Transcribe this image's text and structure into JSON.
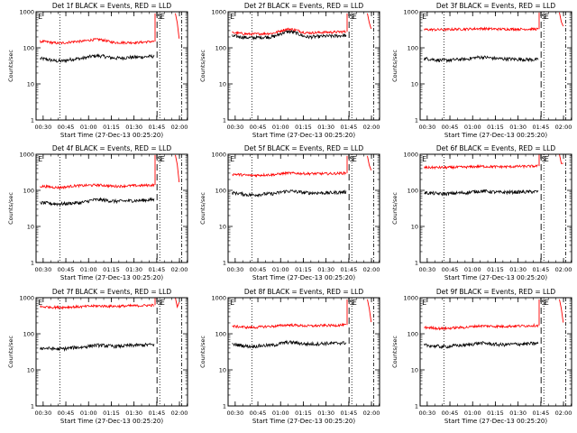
{
  "chart_data": {
    "type": "line",
    "ylabel": "Counts/sec",
    "xlabel": "Start Time (27-Dec-13 00:25:20)",
    "yscale": "log",
    "ylim": [
      1,
      1000
    ],
    "y_ticks": [
      {
        "value": 1,
        "label": "1"
      },
      {
        "value": 10,
        "label": "10"
      },
      {
        "value": 100,
        "label": "100"
      },
      {
        "value": 1000,
        "label": "1000"
      }
    ],
    "xlim_minutes": [
      25.33,
      125.33
    ],
    "x_ticks": [
      {
        "minute": 30,
        "label": "00:30"
      },
      {
        "minute": 45,
        "label": "00:45"
      },
      {
        "minute": 60,
        "label": "01:00"
      },
      {
        "minute": 75,
        "label": "01:15"
      },
      {
        "minute": 90,
        "label": "01:30"
      },
      {
        "minute": 105,
        "label": "01:45"
      },
      {
        "minute": 120,
        "label": "02:00"
      }
    ],
    "markers": [
      {
        "label": "E",
        "minute": 26.3,
        "line": "none"
      },
      {
        "label": "S",
        "minute": 105.2,
        "line": "long-dash"
      },
      {
        "label": "E",
        "minute": 107.0,
        "line": "dotted"
      }
    ],
    "reference_lines": [
      {
        "minute": 41,
        "style": "dotted"
      },
      {
        "minute": 121.5,
        "style": "dash-dot"
      }
    ],
    "colors": {
      "events": "#000000",
      "lld": "#ff0000"
    },
    "panels": [
      {
        "title": "Det 1f BLACK = Events, RED = LLD",
        "lld": [
          150,
          135,
          150,
          170,
          140,
          140,
          150
        ],
        "events": [
          50,
          43,
          50,
          60,
          52,
          55,
          58
        ],
        "after_peak": 900
      },
      {
        "title": "Det 2f BLACK = Events, RED = LLD",
        "lld": [
          260,
          240,
          250,
          330,
          260,
          270,
          280
        ],
        "events": [
          210,
          190,
          200,
          280,
          200,
          210,
          220
        ],
        "after_peak": 900
      },
      {
        "title": "Det 3f BLACK = Events, RED = LLD",
        "lld": [
          320,
          320,
          330,
          340,
          330,
          330,
          330
        ],
        "events": [
          50,
          45,
          48,
          55,
          50,
          48,
          47
        ],
        "after_peak": 950
      },
      {
        "title": "Det 4f BLACK = Events, RED = LLD",
        "lld": [
          130,
          120,
          135,
          140,
          130,
          135,
          140
        ],
        "events": [
          45,
          42,
          45,
          55,
          50,
          52,
          55
        ],
        "after_peak": 950
      },
      {
        "title": "Det 5f BLACK = Events, RED = LLD",
        "lld": [
          280,
          260,
          270,
          300,
          290,
          290,
          300
        ],
        "events": [
          85,
          75,
          80,
          95,
          85,
          85,
          90
        ],
        "after_peak": 900
      },
      {
        "title": "Det 6f BLACK = Events, RED = LLD",
        "lld": [
          430,
          430,
          440,
          460,
          450,
          460,
          470
        ],
        "events": [
          85,
          80,
          85,
          95,
          88,
          90,
          92
        ],
        "after_peak": 1000
      },
      {
        "title": "Det 7f BLACK = Events, RED = LLD",
        "lld": [
          560,
          540,
          560,
          590,
          580,
          600,
          620
        ],
        "events": [
          40,
          38,
          42,
          48,
          45,
          48,
          50
        ],
        "after_peak": 1000
      },
      {
        "title": "Det 8f BLACK = Events, RED = LLD",
        "lld": [
          160,
          150,
          160,
          175,
          165,
          170,
          175
        ],
        "events": [
          50,
          45,
          48,
          58,
          52,
          54,
          56
        ],
        "after_peak": 900
      },
      {
        "title": "Det 9f BLACK = Events, RED = LLD",
        "lld": [
          150,
          140,
          150,
          165,
          160,
          165,
          170
        ],
        "events": [
          48,
          44,
          48,
          55,
          50,
          52,
          54
        ],
        "after_peak": 900
      }
    ]
  }
}
